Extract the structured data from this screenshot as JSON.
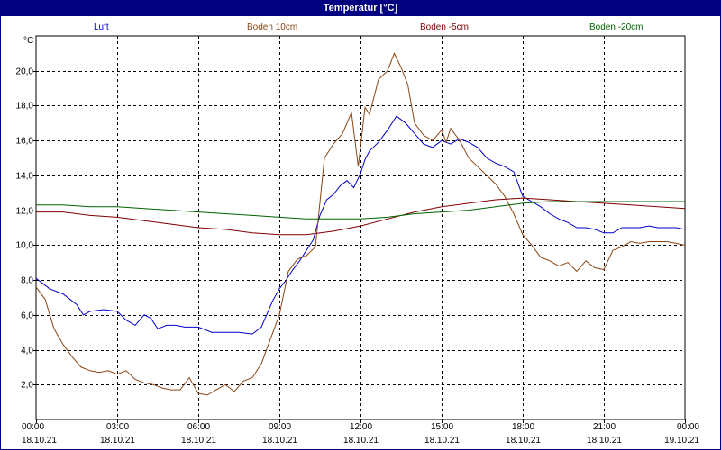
{
  "window": {
    "title": "Temperatur [°C]"
  },
  "chart_data": {
    "type": "line",
    "y_unit": "°C",
    "ylim": [
      0,
      22
    ],
    "x_range": [
      "2021-10-18T00:00",
      "2021-10-19T00:00"
    ],
    "grid": true,
    "y_ticks": [
      "2,0",
      "4,0",
      "6,0",
      "8,0",
      "10,0",
      "12,0",
      "14,0",
      "16,0",
      "18,0",
      "20,0"
    ],
    "y_tick_values": [
      2,
      4,
      6,
      8,
      10,
      12,
      14,
      16,
      18,
      20
    ],
    "x_ticks": [
      {
        "time": "00:00",
        "date": "18.10.21"
      },
      {
        "time": "03:00",
        "date": "18.10.21"
      },
      {
        "time": "06:00",
        "date": "18.10.21"
      },
      {
        "time": "09:00",
        "date": "18.10.21"
      },
      {
        "time": "12:00",
        "date": "18.10.21"
      },
      {
        "time": "15:00",
        "date": "18.10.21"
      },
      {
        "time": "18:00",
        "date": "18.10.21"
      },
      {
        "time": "21:00",
        "date": "18.10.21"
      },
      {
        "time": "00:00",
        "date": "19.10.21"
      }
    ],
    "series": [
      {
        "name": "Luft",
        "color": "#0000cc",
        "x": [
          "00:00",
          "00:30",
          "01:00",
          "01:30",
          "01:45",
          "02:00",
          "02:30",
          "03:00",
          "03:20",
          "03:40",
          "04:00",
          "04:15",
          "04:30",
          "04:50",
          "05:10",
          "05:30",
          "06:00",
          "06:30",
          "07:00",
          "07:30",
          "08:00",
          "08:20",
          "08:45",
          "09:00",
          "09:15",
          "09:30",
          "09:45",
          "10:00",
          "10:15",
          "10:30",
          "10:45",
          "11:00",
          "11:15",
          "11:30",
          "11:45",
          "12:00",
          "12:10",
          "12:20",
          "12:40",
          "13:00",
          "13:20",
          "13:40",
          "14:00",
          "14:20",
          "14:40",
          "15:00",
          "15:20",
          "15:40",
          "16:00",
          "16:20",
          "16:40",
          "17:00",
          "17:20",
          "17:40",
          "18:00",
          "18:20",
          "18:40",
          "19:00",
          "19:20",
          "19:40",
          "20:00",
          "20:20",
          "20:40",
          "21:00",
          "21:20",
          "21:40",
          "22:00",
          "22:20",
          "22:40",
          "23:00",
          "23:20",
          "23:40",
          "24:00"
        ],
        "y": [
          8.1,
          7.5,
          7.2,
          6.6,
          6.0,
          6.2,
          6.3,
          6.2,
          5.7,
          5.4,
          6.0,
          5.8,
          5.2,
          5.4,
          5.4,
          5.3,
          5.3,
          5.0,
          5.0,
          5.0,
          4.9,
          5.3,
          6.8,
          7.5,
          8.0,
          8.6,
          9.1,
          9.7,
          10.3,
          11.7,
          12.6,
          12.9,
          13.4,
          13.7,
          13.3,
          14.1,
          14.9,
          15.4,
          15.9,
          16.6,
          17.4,
          17.0,
          16.4,
          15.8,
          15.6,
          16.0,
          15.8,
          16.1,
          15.9,
          15.6,
          15.0,
          14.7,
          14.5,
          14.2,
          12.8,
          12.5,
          12.2,
          11.8,
          11.5,
          11.3,
          11.0,
          11.0,
          10.9,
          10.7,
          10.7,
          11.0,
          11.0,
          11.0,
          11.1,
          11.0,
          11.0,
          11.0,
          10.9
        ]
      },
      {
        "name": "Boden 10cm",
        "color": "#8b4513",
        "x": [
          "00:00",
          "00:20",
          "00:40",
          "01:00",
          "01:20",
          "01:40",
          "02:00",
          "02:20",
          "02:40",
          "03:00",
          "03:20",
          "03:40",
          "04:00",
          "04:20",
          "04:40",
          "05:00",
          "05:20",
          "05:40",
          "06:00",
          "06:20",
          "06:40",
          "07:00",
          "07:20",
          "07:40",
          "08:00",
          "08:20",
          "08:40",
          "09:00",
          "09:20",
          "09:40",
          "10:00",
          "10:20",
          "10:40",
          "11:00",
          "11:20",
          "11:40",
          "11:55",
          "12:10",
          "12:20",
          "12:40",
          "13:00",
          "13:15",
          "13:30",
          "13:45",
          "14:00",
          "14:20",
          "14:40",
          "15:00",
          "15:10",
          "15:20",
          "15:40",
          "16:00",
          "16:20",
          "16:40",
          "17:00",
          "17:20",
          "17:40",
          "18:00",
          "18:20",
          "18:40",
          "19:00",
          "19:20",
          "19:40",
          "20:00",
          "20:20",
          "20:40",
          "21:00",
          "21:20",
          "21:40",
          "22:00",
          "22:20",
          "22:40",
          "23:00",
          "23:20",
          "23:40",
          "24:00"
        ],
        "y": [
          7.6,
          6.9,
          5.2,
          4.3,
          3.6,
          3.0,
          2.8,
          2.7,
          2.8,
          2.6,
          2.8,
          2.3,
          2.1,
          2.0,
          1.8,
          1.7,
          1.7,
          2.4,
          1.5,
          1.4,
          1.7,
          2.0,
          1.6,
          2.2,
          2.4,
          3.2,
          4.6,
          6.0,
          8.5,
          9.2,
          9.4,
          9.9,
          15.0,
          15.8,
          16.4,
          17.6,
          14.5,
          17.9,
          17.5,
          19.5,
          20.0,
          21.0,
          20.2,
          19.2,
          17.0,
          16.3,
          16.0,
          16.6,
          15.9,
          16.7,
          16.0,
          15.0,
          14.5,
          14.0,
          13.5,
          12.8,
          11.8,
          10.6,
          10.0,
          9.3,
          9.1,
          8.8,
          9.0,
          8.5,
          9.1,
          8.7,
          8.6,
          9.7,
          9.9,
          10.2,
          10.1,
          10.2,
          10.2,
          10.2,
          10.1,
          10.0
        ]
      },
      {
        "name": "Boden -5cm",
        "color": "#800000",
        "x": [
          "00:00",
          "01:00",
          "02:00",
          "03:00",
          "04:00",
          "05:00",
          "06:00",
          "07:00",
          "08:00",
          "09:00",
          "10:00",
          "11:00",
          "12:00",
          "13:00",
          "14:00",
          "15:00",
          "16:00",
          "17:00",
          "18:00",
          "19:00",
          "20:00",
          "21:00",
          "22:00",
          "23:00",
          "24:00"
        ],
        "y": [
          11.9,
          11.9,
          11.7,
          11.6,
          11.4,
          11.2,
          11.0,
          10.9,
          10.7,
          10.6,
          10.6,
          10.8,
          11.1,
          11.5,
          11.9,
          12.2,
          12.4,
          12.6,
          12.7,
          12.6,
          12.5,
          12.4,
          12.3,
          12.2,
          12.1
        ]
      },
      {
        "name": "Boden -20cm",
        "color": "#006400",
        "x": [
          "00:00",
          "01:00",
          "02:00",
          "03:00",
          "04:00",
          "05:00",
          "06:00",
          "07:00",
          "08:00",
          "09:00",
          "10:00",
          "11:00",
          "12:00",
          "13:00",
          "14:00",
          "15:00",
          "16:00",
          "17:00",
          "18:00",
          "19:00",
          "20:00",
          "21:00",
          "22:00",
          "23:00",
          "24:00"
        ],
        "y": [
          12.3,
          12.3,
          12.2,
          12.2,
          12.1,
          12.0,
          11.9,
          11.8,
          11.7,
          11.6,
          11.5,
          11.5,
          11.5,
          11.6,
          11.8,
          11.9,
          12.0,
          12.2,
          12.4,
          12.5,
          12.5,
          12.5,
          12.5,
          12.5,
          12.5
        ]
      }
    ]
  }
}
